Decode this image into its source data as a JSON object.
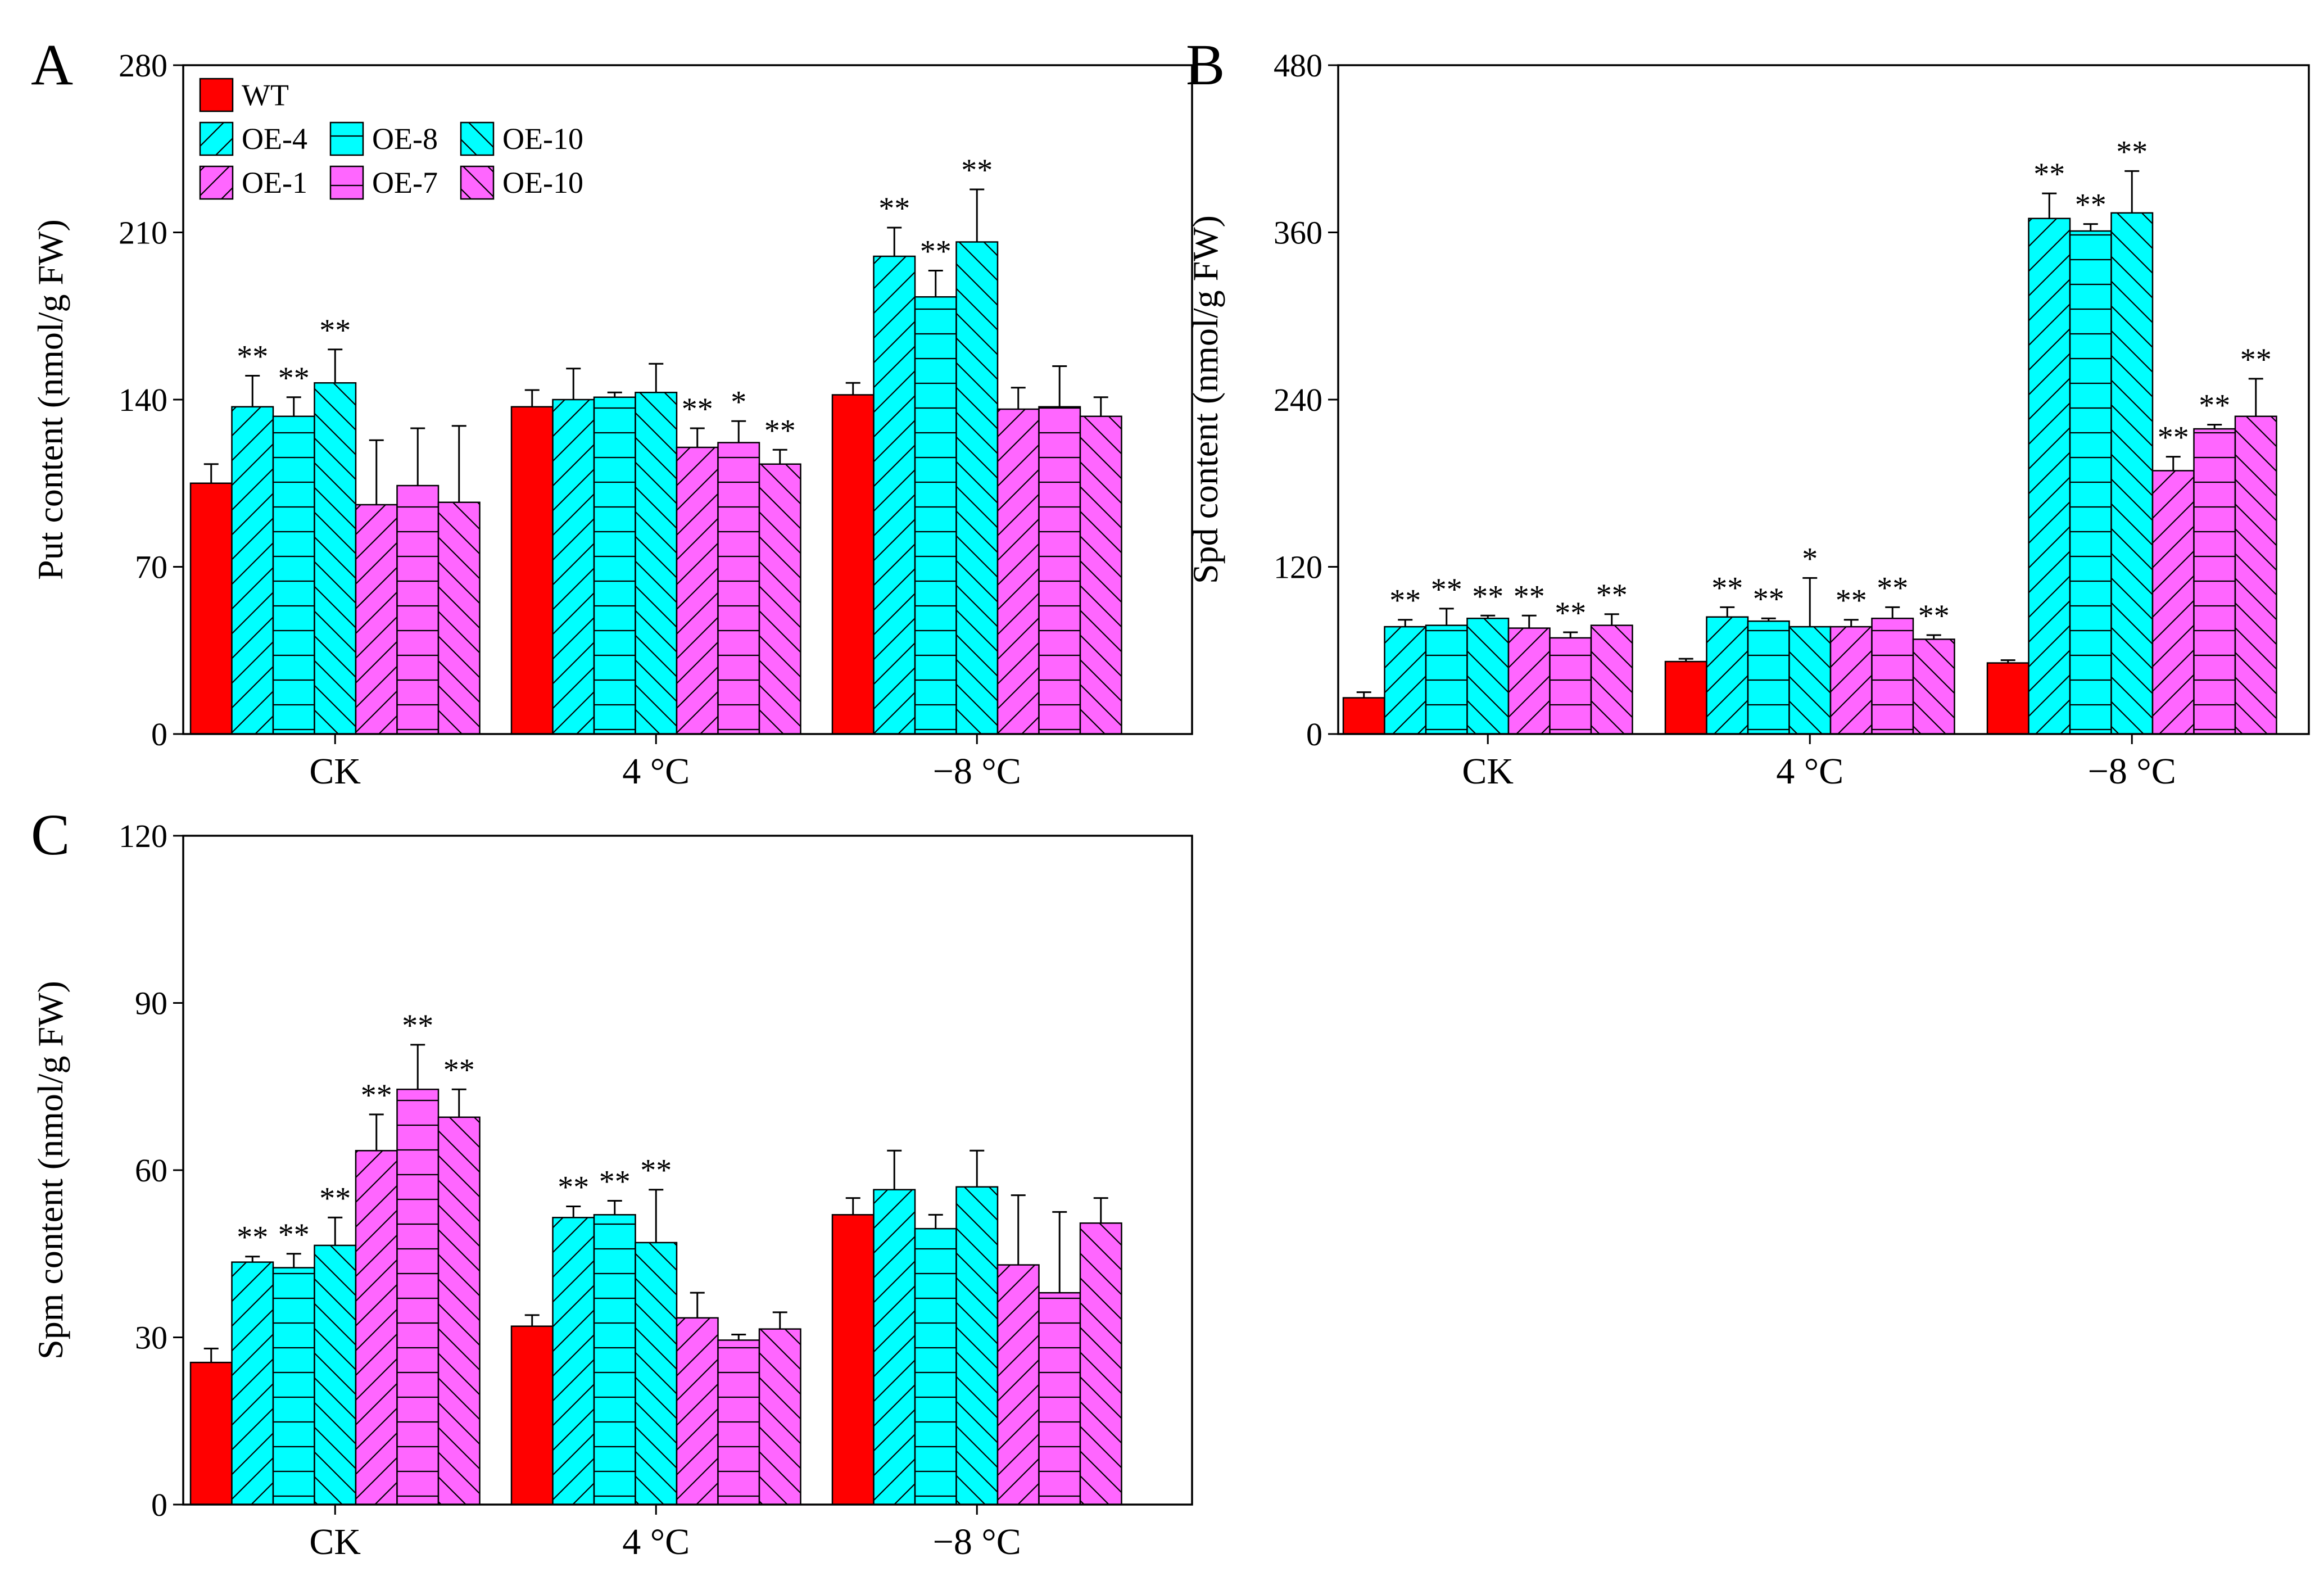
{
  "colors": {
    "wt": "#ff0000",
    "oe_cyan": "#00ffff",
    "oe_magenta": "#ff66ff",
    "axis": "#000000"
  },
  "legend": {
    "items": [
      {
        "label": "WT",
        "color": "#ff0000",
        "pattern": "none"
      },
      {
        "label": "OE-4",
        "color": "#00ffff",
        "pattern": "diag-up"
      },
      {
        "label": "OE-8",
        "color": "#00ffff",
        "pattern": "horizontal"
      },
      {
        "label": "OE-10",
        "color": "#00ffff",
        "pattern": "diag-down"
      },
      {
        "label": "OE-1",
        "color": "#ff66ff",
        "pattern": "diag-up"
      },
      {
        "label": "OE-7",
        "color": "#ff66ff",
        "pattern": "horizontal"
      },
      {
        "label": "OE-10",
        "color": "#ff66ff",
        "pattern": "diag-down"
      }
    ]
  },
  "chart_data": [
    {
      "panel": "A",
      "type": "bar",
      "ylabel": "Put content (nmol/g FW)",
      "ylim": [
        0,
        280
      ],
      "yticks": [
        0,
        70,
        140,
        210,
        280
      ],
      "categories": [
        "CK",
        "4 °C",
        "−8 °C"
      ],
      "series": [
        {
          "name": "WT",
          "values": [
            105,
            137,
            142
          ],
          "errors": [
            8,
            7,
            5
          ],
          "sig": [
            "",
            "",
            ""
          ]
        },
        {
          "name": "OE-4",
          "values": [
            137,
            140,
            200
          ],
          "errors": [
            13,
            13,
            12
          ],
          "sig": [
            "**",
            "",
            "**"
          ]
        },
        {
          "name": "OE-8",
          "values": [
            133,
            141,
            183
          ],
          "errors": [
            8,
            2,
            11
          ],
          "sig": [
            "**",
            "",
            "**"
          ]
        },
        {
          "name": "OE-10",
          "values": [
            147,
            143,
            206
          ],
          "errors": [
            14,
            12,
            22
          ],
          "sig": [
            "**",
            "",
            "**"
          ]
        },
        {
          "name": "OE-1",
          "values": [
            96,
            120,
            136
          ],
          "errors": [
            27,
            8,
            9
          ],
          "sig": [
            "",
            "**",
            ""
          ]
        },
        {
          "name": "OE-7",
          "values": [
            104,
            122,
            137
          ],
          "errors": [
            24,
            9,
            17
          ],
          "sig": [
            "",
            "*",
            ""
          ]
        },
        {
          "name": "OE-10",
          "values": [
            97,
            113,
            133
          ],
          "errors": [
            32,
            6,
            8
          ],
          "sig": [
            "",
            "**",
            ""
          ]
        }
      ]
    },
    {
      "panel": "B",
      "type": "bar",
      "ylabel": "Spd content (nmol/g FW)",
      "ylim": [
        0,
        480
      ],
      "yticks": [
        0,
        120,
        240,
        360,
        480
      ],
      "categories": [
        "CK",
        "4 °C",
        "−8 °C"
      ],
      "series": [
        {
          "name": "WT",
          "values": [
            26,
            52,
            51
          ],
          "errors": [
            4,
            2,
            2
          ],
          "sig": [
            "",
            "",
            ""
          ]
        },
        {
          "name": "OE-4",
          "values": [
            77,
            84,
            370
          ],
          "errors": [
            5,
            7,
            18
          ],
          "sig": [
            "**",
            "**",
            "**"
          ]
        },
        {
          "name": "OE-8",
          "values": [
            78,
            81,
            361
          ],
          "errors": [
            12,
            2,
            5
          ],
          "sig": [
            "**",
            "**",
            "**"
          ]
        },
        {
          "name": "OE-10",
          "values": [
            83,
            77,
            374
          ],
          "errors": [
            2,
            35,
            30
          ],
          "sig": [
            "**",
            "*",
            "**"
          ]
        },
        {
          "name": "OE-1",
          "values": [
            76,
            77,
            189
          ],
          "errors": [
            9,
            5,
            10
          ],
          "sig": [
            "**",
            "**",
            "**"
          ]
        },
        {
          "name": "OE-7",
          "values": [
            69,
            83,
            219
          ],
          "errors": [
            4,
            8,
            3
          ],
          "sig": [
            "**",
            "**",
            "**"
          ]
        },
        {
          "name": "OE-10",
          "values": [
            78,
            68,
            228
          ],
          "errors": [
            8,
            3,
            27
          ],
          "sig": [
            "**",
            "**",
            "**"
          ]
        }
      ]
    },
    {
      "panel": "C",
      "type": "bar",
      "ylabel": "Spm content (nmol/g FW)",
      "ylim": [
        0,
        120
      ],
      "yticks": [
        0,
        30,
        60,
        90,
        120
      ],
      "categories": [
        "CK",
        "4 °C",
        "−8 °C"
      ],
      "series": [
        {
          "name": "WT",
          "values": [
            25.5,
            32,
            52
          ],
          "errors": [
            2.5,
            2,
            3
          ],
          "sig": [
            "",
            "",
            ""
          ]
        },
        {
          "name": "OE-4",
          "values": [
            43.5,
            51.5,
            56.5
          ],
          "errors": [
            1,
            2,
            7
          ],
          "sig": [
            "**",
            "**",
            ""
          ]
        },
        {
          "name": "OE-8",
          "values": [
            42.5,
            52,
            49.5
          ],
          "errors": [
            2.5,
            2.5,
            2.5
          ],
          "sig": [
            "**",
            "**",
            ""
          ]
        },
        {
          "name": "OE-10",
          "values": [
            46.5,
            47,
            57
          ],
          "errors": [
            5,
            9.5,
            6.5
          ],
          "sig": [
            "**",
            "**",
            ""
          ]
        },
        {
          "name": "OE-1",
          "values": [
            63.5,
            33.5,
            43
          ],
          "errors": [
            6.5,
            4.5,
            12.5
          ],
          "sig": [
            "**",
            "",
            ""
          ]
        },
        {
          "name": "OE-7",
          "values": [
            74.5,
            29.5,
            38
          ],
          "errors": [
            8,
            1,
            14.5
          ],
          "sig": [
            "**",
            "",
            ""
          ]
        },
        {
          "name": "OE-10",
          "values": [
            69.5,
            31.5,
            50.5
          ],
          "errors": [
            5,
            3,
            4.5
          ],
          "sig": [
            "**",
            "",
            ""
          ]
        }
      ]
    }
  ]
}
